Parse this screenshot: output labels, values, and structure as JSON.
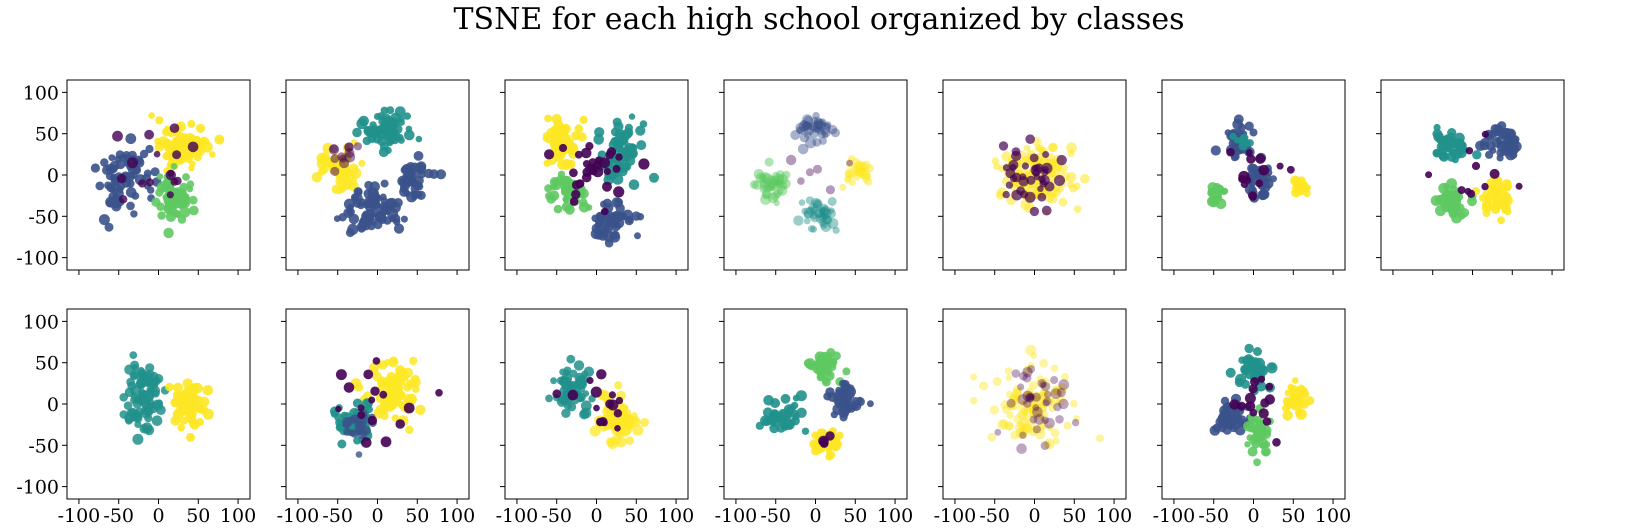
{
  "title": "TSNE for each high school organized by classes",
  "palette": {
    "c0": "#440154",
    "c1": "#3b528b",
    "c2": "#21918c",
    "c3": "#5ec962",
    "c4": "#fde725"
  },
  "chart_data": {
    "type": "scatter",
    "title": "TSNE for each high school organized by classes",
    "layout": "2 rows x 7 columns, shared x and y axes, 13 panels",
    "xlim": [
      -115,
      115
    ],
    "ylim": [
      -115,
      115
    ],
    "xticks": [
      -100,
      -50,
      0,
      50,
      100
    ],
    "yticks": [
      -100,
      -50,
      0,
      50,
      100
    ],
    "xtick_labels": [
      "-100",
      "-50",
      "0",
      "50",
      "100"
    ],
    "ytick_labels": [
      "-100",
      "-50",
      "0",
      "50",
      "100"
    ],
    "grid": false,
    "legend": "none",
    "panels": [
      {
        "clusters": [
          {
            "color": "c1",
            "cx": -45,
            "cy": -5,
            "sx": 26,
            "sy": 32,
            "n": 70,
            "opacity": 0.9
          },
          {
            "color": "c4",
            "cx": 30,
            "cy": 35,
            "sx": 26,
            "sy": 22,
            "n": 80,
            "opacity": 0.9
          },
          {
            "color": "c3",
            "cx": 20,
            "cy": -25,
            "sx": 22,
            "sy": 24,
            "n": 60,
            "opacity": 0.9
          },
          {
            "color": "c0",
            "cx": -10,
            "cy": 20,
            "sx": 45,
            "sy": 40,
            "n": 16,
            "opacity": 0.8
          }
        ]
      },
      {
        "clusters": [
          {
            "color": "c2",
            "cx": 10,
            "cy": 55,
            "sx": 24,
            "sy": 20,
            "n": 70,
            "opacity": 0.9
          },
          {
            "color": "c4",
            "cx": -45,
            "cy": 10,
            "sx": 22,
            "sy": 22,
            "n": 50,
            "opacity": 0.85
          },
          {
            "color": "c1",
            "cx": -10,
            "cy": -45,
            "sx": 30,
            "sy": 22,
            "n": 70,
            "opacity": 0.9
          },
          {
            "color": "c1",
            "cx": 45,
            "cy": -5,
            "sx": 18,
            "sy": 24,
            "n": 40,
            "opacity": 0.9
          },
          {
            "color": "c0",
            "cx": -40,
            "cy": 25,
            "sx": 18,
            "sy": 16,
            "n": 12,
            "opacity": 0.5
          }
        ]
      },
      {
        "clusters": [
          {
            "color": "c4",
            "cx": -40,
            "cy": 40,
            "sx": 20,
            "sy": 22,
            "n": 50,
            "opacity": 0.9
          },
          {
            "color": "c2",
            "cx": 30,
            "cy": 25,
            "sx": 24,
            "sy": 26,
            "n": 70,
            "opacity": 0.9
          },
          {
            "color": "c3",
            "cx": -35,
            "cy": -20,
            "sx": 20,
            "sy": 16,
            "n": 40,
            "opacity": 0.9
          },
          {
            "color": "c1",
            "cx": 20,
            "cy": -55,
            "sx": 24,
            "sy": 18,
            "n": 50,
            "opacity": 0.9
          },
          {
            "color": "c0",
            "cx": 0,
            "cy": 0,
            "sx": 45,
            "sy": 40,
            "n": 30,
            "opacity": 0.9
          }
        ]
      },
      {
        "clusters": [
          {
            "color": "c1",
            "cx": 0,
            "cy": 55,
            "sx": 20,
            "sy": 16,
            "n": 40,
            "opacity": 0.45
          },
          {
            "color": "c3",
            "cx": -55,
            "cy": -10,
            "sx": 18,
            "sy": 16,
            "n": 40,
            "opacity": 0.5
          },
          {
            "color": "c2",
            "cx": 5,
            "cy": -50,
            "sx": 20,
            "sy": 16,
            "n": 40,
            "opacity": 0.45
          },
          {
            "color": "c4",
            "cx": 55,
            "cy": 5,
            "sx": 14,
            "sy": 16,
            "n": 30,
            "opacity": 0.5
          },
          {
            "color": "c0",
            "cx": 0,
            "cy": 0,
            "sx": 35,
            "sy": 35,
            "n": 6,
            "opacity": 0.4
          }
        ]
      },
      {
        "clusters": [
          {
            "color": "c4",
            "cx": 0,
            "cy": 0,
            "sx": 40,
            "sy": 32,
            "n": 120,
            "opacity": 0.55
          },
          {
            "color": "c0",
            "cx": 0,
            "cy": 0,
            "sx": 36,
            "sy": 30,
            "n": 40,
            "opacity": 0.7
          }
        ]
      },
      {
        "clusters": [
          {
            "color": "c1",
            "cx": -20,
            "cy": 40,
            "sx": 15,
            "sy": 16,
            "n": 35,
            "opacity": 0.9
          },
          {
            "color": "c2",
            "cx": -10,
            "cy": 45,
            "sx": 12,
            "sy": 10,
            "n": 10,
            "opacity": 0.9
          },
          {
            "color": "c1",
            "cx": 10,
            "cy": -10,
            "sx": 14,
            "sy": 20,
            "n": 35,
            "opacity": 0.9
          },
          {
            "color": "c3",
            "cx": -45,
            "cy": -25,
            "sx": 8,
            "sy": 12,
            "n": 20,
            "opacity": 0.9
          },
          {
            "color": "c4",
            "cx": 60,
            "cy": -15,
            "sx": 8,
            "sy": 10,
            "n": 18,
            "opacity": 0.9
          },
          {
            "color": "c0",
            "cx": 0,
            "cy": 0,
            "sx": 40,
            "sy": 35,
            "n": 14,
            "opacity": 0.9
          }
        ]
      },
      {
        "clusters": [
          {
            "color": "c1",
            "cx": 35,
            "cy": 40,
            "sx": 18,
            "sy": 18,
            "n": 45,
            "opacity": 0.9
          },
          {
            "color": "c2",
            "cx": -25,
            "cy": 35,
            "sx": 20,
            "sy": 16,
            "n": 45,
            "opacity": 0.9
          },
          {
            "color": "c3",
            "cx": -25,
            "cy": -30,
            "sx": 18,
            "sy": 18,
            "n": 40,
            "opacity": 0.9
          },
          {
            "color": "c4",
            "cx": 30,
            "cy": -30,
            "sx": 16,
            "sy": 18,
            "n": 40,
            "opacity": 0.9
          },
          {
            "color": "c0",
            "cx": 0,
            "cy": 0,
            "sx": 40,
            "sy": 35,
            "n": 10,
            "opacity": 0.9
          }
        ]
      },
      {
        "clusters": [
          {
            "color": "c2",
            "cx": -20,
            "cy": 10,
            "sx": 20,
            "sy": 32,
            "n": 80,
            "opacity": 0.85
          },
          {
            "color": "c4",
            "cx": 40,
            "cy": 0,
            "sx": 16,
            "sy": 22,
            "n": 60,
            "opacity": 0.9
          }
        ]
      },
      {
        "clusters": [
          {
            "color": "c4",
            "cx": 20,
            "cy": 15,
            "sx": 28,
            "sy": 32,
            "n": 90,
            "opacity": 0.85
          },
          {
            "color": "c2",
            "cx": -30,
            "cy": -25,
            "sx": 22,
            "sy": 22,
            "n": 55,
            "opacity": 0.9
          },
          {
            "color": "c1",
            "cx": -20,
            "cy": -25,
            "sx": 16,
            "sy": 16,
            "n": 20,
            "opacity": 0.8
          },
          {
            "color": "c0",
            "cx": 0,
            "cy": 10,
            "sx": 40,
            "sy": 35,
            "n": 16,
            "opacity": 0.9
          }
        ]
      },
      {
        "clusters": [
          {
            "color": "c2",
            "cx": -30,
            "cy": 15,
            "sx": 20,
            "sy": 26,
            "n": 60,
            "opacity": 0.85
          },
          {
            "color": "c4",
            "cx": 30,
            "cy": -15,
            "sx": 22,
            "sy": 26,
            "n": 70,
            "opacity": 0.75
          },
          {
            "color": "c0",
            "cx": 0,
            "cy": 0,
            "sx": 30,
            "sy": 30,
            "n": 16,
            "opacity": 0.9
          }
        ]
      },
      {
        "clusters": [
          {
            "color": "c3",
            "cx": 10,
            "cy": 45,
            "sx": 18,
            "sy": 14,
            "n": 40,
            "opacity": 0.9
          },
          {
            "color": "c2",
            "cx": -40,
            "cy": -15,
            "sx": 20,
            "sy": 18,
            "n": 45,
            "opacity": 0.9
          },
          {
            "color": "c1",
            "cx": 40,
            "cy": 5,
            "sx": 18,
            "sy": 16,
            "n": 40,
            "opacity": 0.9
          },
          {
            "color": "c4",
            "cx": 15,
            "cy": -45,
            "sx": 14,
            "sy": 14,
            "n": 40,
            "opacity": 0.9
          },
          {
            "color": "c0",
            "cx": 10,
            "cy": -45,
            "sx": 8,
            "sy": 8,
            "n": 4,
            "opacity": 0.9
          }
        ]
      },
      {
        "clusters": [
          {
            "color": "c4",
            "cx": 0,
            "cy": 0,
            "sx": 40,
            "sy": 40,
            "n": 110,
            "opacity": 0.45
          },
          {
            "color": "c0",
            "cx": 0,
            "cy": 0,
            "sx": 36,
            "sy": 36,
            "n": 40,
            "opacity": 0.35
          }
        ]
      },
      {
        "clusters": [
          {
            "color": "c2",
            "cx": 0,
            "cy": 40,
            "sx": 18,
            "sy": 20,
            "n": 45,
            "opacity": 0.9
          },
          {
            "color": "c1",
            "cx": -30,
            "cy": -15,
            "sx": 18,
            "sy": 18,
            "n": 40,
            "opacity": 0.9
          },
          {
            "color": "c3",
            "cx": 5,
            "cy": -35,
            "sx": 14,
            "sy": 18,
            "n": 35,
            "opacity": 0.9
          },
          {
            "color": "c4",
            "cx": 55,
            "cy": 5,
            "sx": 12,
            "sy": 16,
            "n": 30,
            "opacity": 0.9
          },
          {
            "color": "c0",
            "cx": 0,
            "cy": 0,
            "sx": 40,
            "sy": 38,
            "n": 14,
            "opacity": 0.9
          }
        ]
      }
    ]
  }
}
